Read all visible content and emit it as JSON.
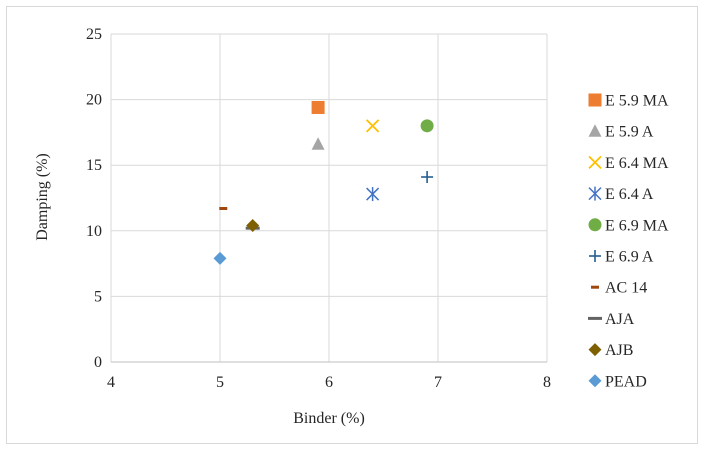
{
  "chart_data": {
    "type": "scatter",
    "title": "",
    "xlabel": "Binder (%)",
    "ylabel": "Damping (%)",
    "xlim": [
      4,
      8
    ],
    "ylim": [
      0,
      25
    ],
    "x_ticks": [
      4,
      5,
      6,
      7,
      8
    ],
    "y_ticks": [
      0,
      5,
      10,
      15,
      20,
      25
    ],
    "grid": "major gridlines on both axes",
    "legend_position": "right",
    "series": [
      {
        "name": "E 5.9 MA",
        "marker": "square",
        "color": "#ED7D31",
        "points": [
          [
            5.9,
            19.4
          ]
        ]
      },
      {
        "name": "E 5.9 A",
        "marker": "triangle",
        "color": "#A5A5A5",
        "points": [
          [
            5.9,
            16.6
          ]
        ]
      },
      {
        "name": "E 6.4 MA",
        "marker": "x",
        "color": "#FFC000",
        "points": [
          [
            6.4,
            18.0
          ]
        ]
      },
      {
        "name": "E 6.4 A",
        "marker": "star",
        "color": "#4472C4",
        "points": [
          [
            6.4,
            12.8
          ]
        ]
      },
      {
        "name": "E 6.9 MA",
        "marker": "circle",
        "color": "#70AD47",
        "points": [
          [
            6.9,
            18.0
          ]
        ]
      },
      {
        "name": "E 6.9 A",
        "marker": "plus",
        "color": "#255E91",
        "points": [
          [
            6.9,
            14.1
          ]
        ]
      },
      {
        "name": "AC 14",
        "marker": "dash",
        "color": "#9E480E",
        "points": [
          [
            5.03,
            11.7
          ]
        ]
      },
      {
        "name": "AJA",
        "marker": "longdash",
        "color": "#636363",
        "points": [
          [
            5.3,
            10.2
          ]
        ]
      },
      {
        "name": "AJB",
        "marker": "diamond",
        "color": "#7F6000",
        "points": [
          [
            5.3,
            10.4
          ]
        ]
      },
      {
        "name": "PEAD",
        "marker": "diamond",
        "color": "#5B9BD5",
        "points": [
          [
            5.0,
            7.9
          ]
        ]
      }
    ]
  }
}
